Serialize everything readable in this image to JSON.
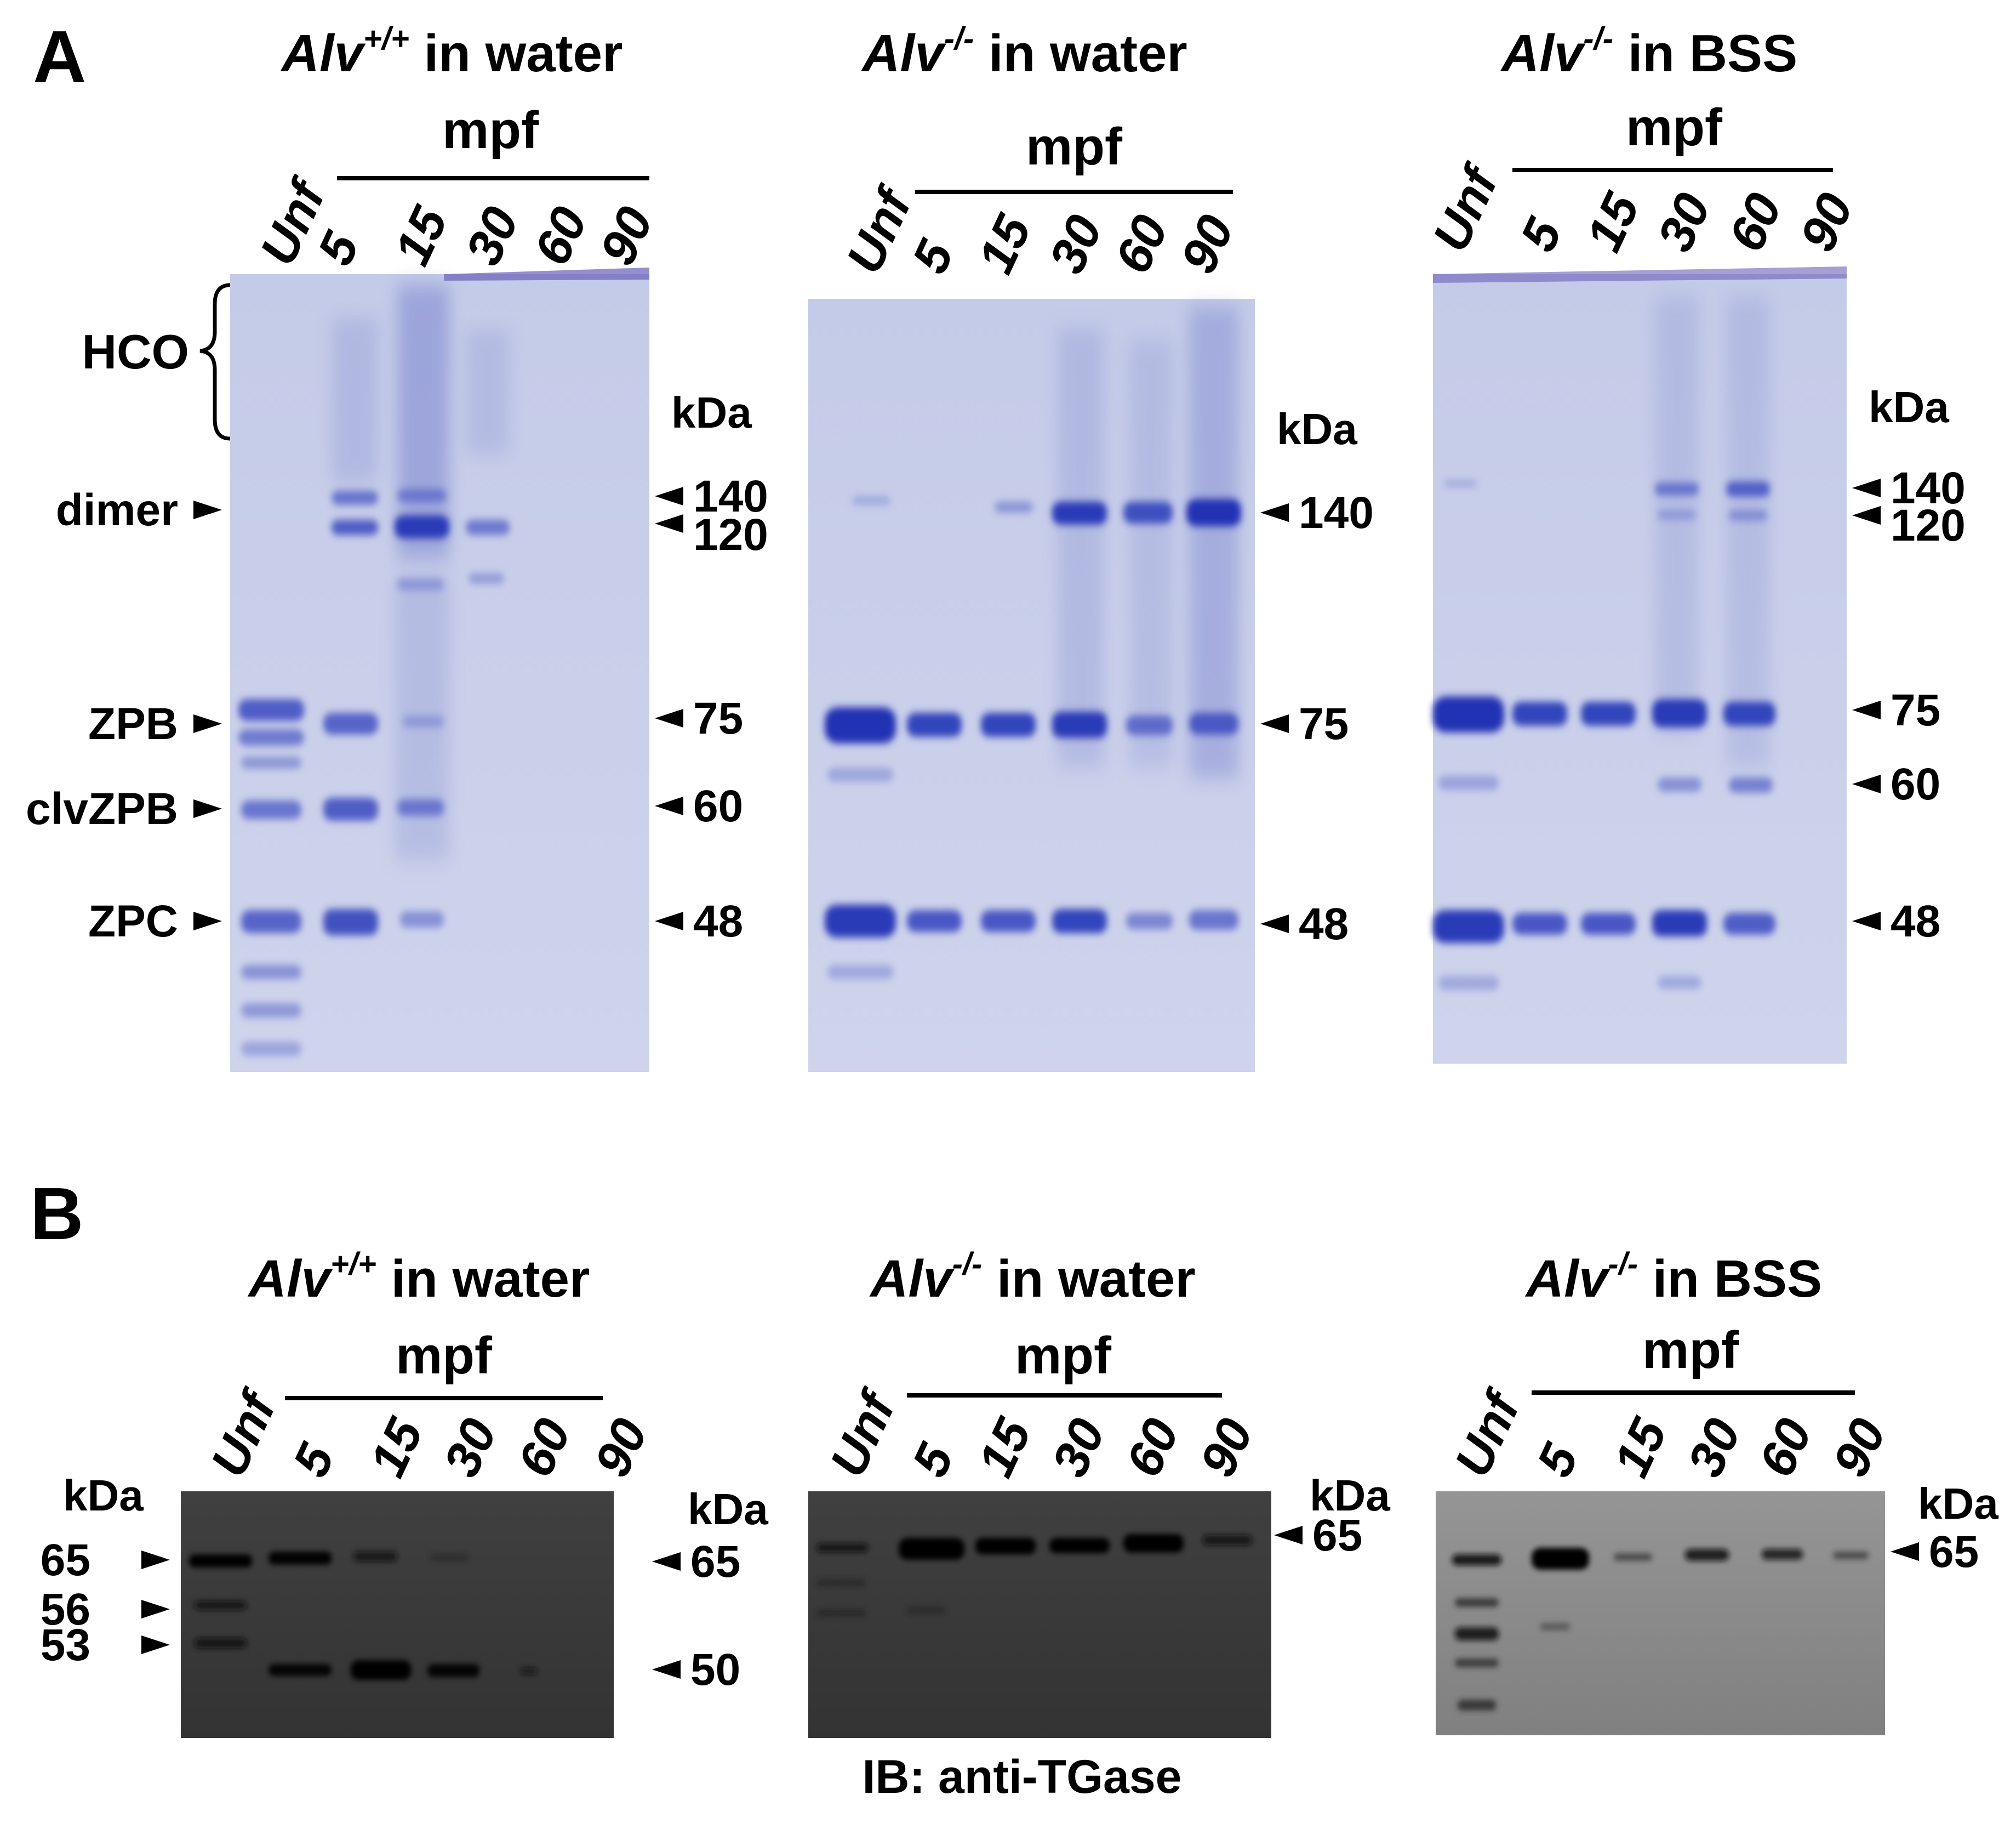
{
  "panel_a": {
    "letter": "A",
    "lane_labels": [
      "Unf",
      "5",
      "15",
      "30",
      "60",
      "90"
    ],
    "timepoint_header": "mpf",
    "unit": "kDa",
    "left_bracket_label": "HCO",
    "left_labels": [
      "dimer",
      "ZPB",
      "clvZPB",
      "ZPC"
    ],
    "gels": [
      {
        "genotype": "Alv",
        "superscript": "+/+",
        "condition": " in water",
        "markers": [
          "140",
          "120",
          "75",
          "60",
          "48"
        ],
        "band_notes": "Unf lane: ZPB 75, clvZPB 60, ZPC 48. 5 mpf: 140/120 dimer, 75, 60, 48. 15 mpf: strong 120 dimer, HCO smear, weak 75/60/48. 30 mpf: weak 120. 60, 90 mpf: empty."
      },
      {
        "genotype": "Alv",
        "superscript": "-/-",
        "condition": " in water",
        "markers": [
          "140",
          "75",
          "48"
        ],
        "band_notes": "75 and 48 present in all lanes; 140 dimer strong at 30, 60, 90 mpf, faint at 15 mpf."
      },
      {
        "genotype": "Alv",
        "superscript": "-/-",
        "condition": " in BSS",
        "markers": [
          "140",
          "120",
          "75",
          "60",
          "48"
        ],
        "band_notes": "75 and 48 present in lanes Unf to 60 mpf; 140/120 at 30 and 60 mpf; 90 mpf lane empty."
      }
    ]
  },
  "panel_b": {
    "letter": "B",
    "lane_labels": [
      "Unf",
      "5",
      "15",
      "30",
      "60",
      "90"
    ],
    "timepoint_header": "mpf",
    "unit": "kDa",
    "caption": "IB: anti-TGase",
    "left_markers": [
      "65",
      "56",
      "53"
    ],
    "blots": [
      {
        "genotype": "Alv",
        "superscript": "+/+",
        "condition": " in water",
        "markers": [
          "65",
          "50"
        ],
        "band_notes": "Unf: 65, 56, 53. 5 mpf: 65 and 50. 15 mpf: weak 65, strong 50. 30 mpf: faint 65, 50. 60 mpf: trace 50."
      },
      {
        "genotype": "Alv",
        "superscript": "-/-",
        "condition": " in water",
        "markers": [
          "65"
        ],
        "band_notes": "65 in all lanes; strongest at 5 mpf; weak lower bands in Unf and 5 mpf."
      },
      {
        "genotype": "Alv",
        "superscript": "-/-",
        "condition": " in BSS",
        "markers": [
          "65"
        ],
        "band_notes": "Unf: 65 plus several lower bands. 5 mpf: strong 65. 15 to 90 mpf: weak 65."
      }
    ]
  },
  "colors": {
    "gel_background": "#c9cfe8",
    "gel_band": "#3a48c0",
    "blot_background": "#3a3a3a",
    "blot_background_light": "#8a8a8a",
    "blot_band": "#050505"
  }
}
